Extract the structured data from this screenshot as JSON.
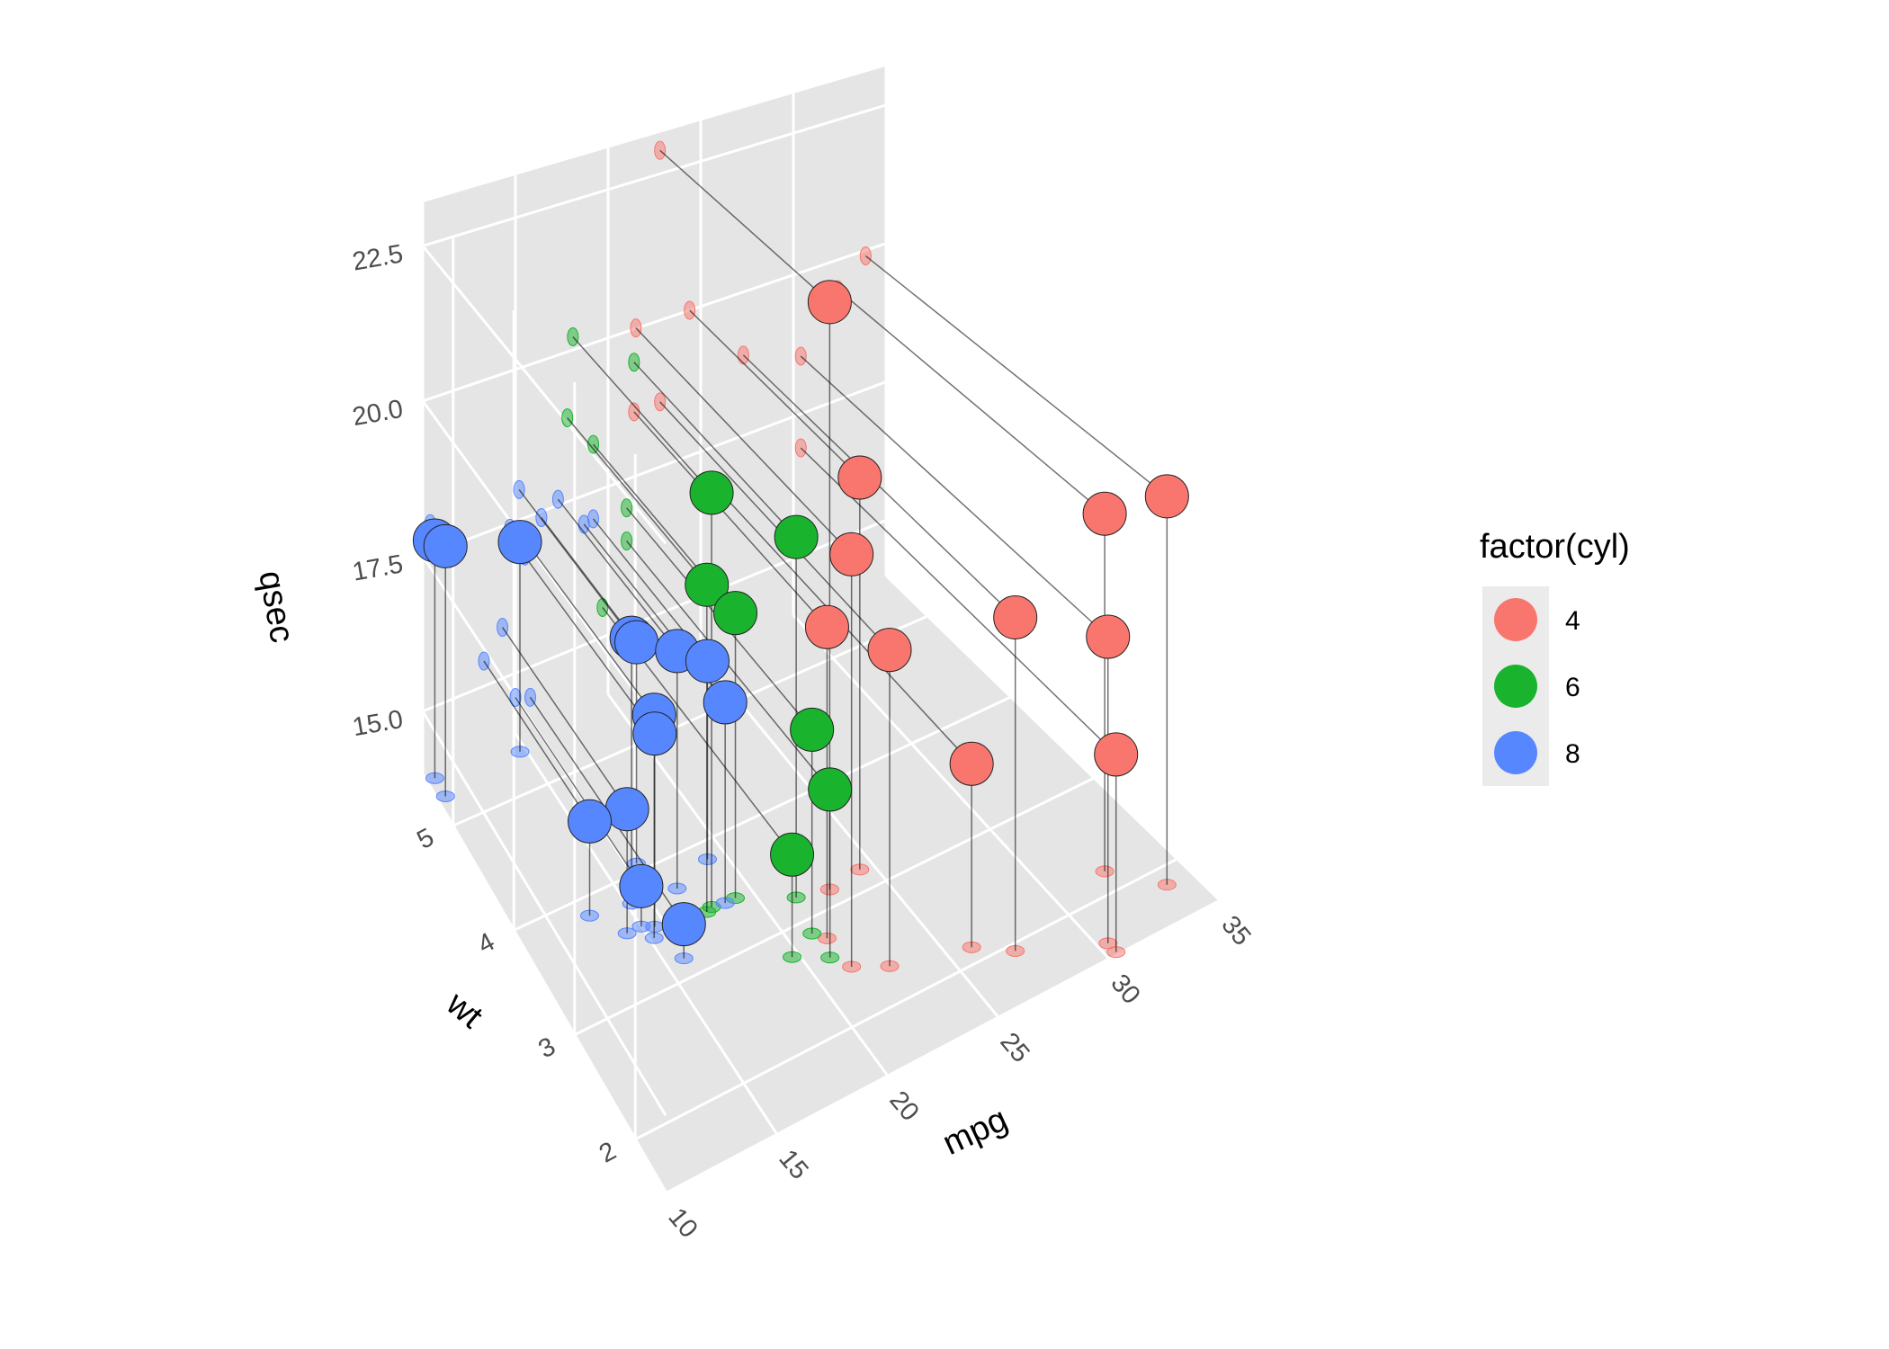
{
  "chart_data": {
    "type": "scatter",
    "variant": "3d-scatter-with-drop-lines-and-shadow-projections",
    "title": "",
    "axes": {
      "x": {
        "label": "mpg",
        "range": [
          10,
          35
        ],
        "ticks": [
          10,
          15,
          20,
          25,
          30,
          35
        ],
        "tick_labels": [
          "10",
          "15",
          "20",
          "25",
          "30",
          "35"
        ]
      },
      "y": {
        "label": "wt",
        "range": [
          1.5,
          5.5
        ],
        "ticks": [
          2,
          3,
          4,
          5
        ],
        "tick_labels": [
          "2",
          "3",
          "4",
          "5"
        ]
      },
      "z": {
        "label": "qsec",
        "range": [
          14,
          23.2
        ],
        "ticks": [
          15,
          17.5,
          20,
          22.5
        ],
        "tick_labels": [
          "15.0",
          "17.5",
          "20.0",
          "22.5"
        ]
      }
    },
    "grid": true,
    "panel_background": "#e5e5e5",
    "legend": {
      "title": "factor(cyl)",
      "position": "right",
      "entries": [
        {
          "label": "4",
          "color": "#f8766d"
        },
        {
          "label": "6",
          "color": "#19b32e"
        },
        {
          "label": "8",
          "color": "#5787ff"
        }
      ]
    },
    "series": [
      {
        "name": "4",
        "color": "#f8766d",
        "points": [
          [
            22.8,
            2.32,
            18.61
          ],
          [
            24.4,
            3.19,
            20.0
          ],
          [
            22.8,
            3.15,
            22.9
          ],
          [
            32.4,
            2.2,
            19.47
          ],
          [
            30.4,
            1.615,
            18.52
          ],
          [
            33.9,
            1.835,
            19.9
          ],
          [
            21.5,
            2.465,
            20.01
          ],
          [
            27.3,
            1.935,
            18.9
          ],
          [
            26.0,
            2.14,
            16.7
          ],
          [
            30.4,
            1.513,
            16.9
          ],
          [
            21.4,
            2.78,
            18.6
          ]
        ]
      },
      {
        "name": "6",
        "color": "#19b32e",
        "points": [
          [
            21.0,
            2.62,
            16.46
          ],
          [
            21.0,
            2.875,
            17.02
          ],
          [
            21.4,
            3.215,
            19.44
          ],
          [
            18.1,
            3.46,
            20.22
          ],
          [
            19.2,
            3.44,
            18.3
          ],
          [
            17.8,
            3.44,
            18.9
          ],
          [
            19.7,
            2.77,
            15.5
          ]
        ]
      },
      {
        "name": "8",
        "color": "#5787ff",
        "points": [
          [
            18.7,
            3.44,
            17.02
          ],
          [
            14.3,
            3.57,
            15.84
          ],
          [
            16.4,
            4.07,
            17.4
          ],
          [
            17.3,
            3.73,
            17.6
          ],
          [
            15.2,
            3.78,
            18.0
          ],
          [
            10.4,
            5.25,
            17.98
          ],
          [
            10.4,
            5.424,
            17.82
          ],
          [
            14.7,
            5.345,
            17.42
          ],
          [
            15.5,
            3.52,
            16.87
          ],
          [
            15.2,
            3.435,
            17.3
          ],
          [
            13.3,
            3.84,
            15.41
          ],
          [
            19.2,
            3.845,
            17.05
          ],
          [
            15.8,
            3.17,
            14.5
          ],
          [
            15.0,
            3.57,
            14.6
          ]
        ]
      }
    ]
  }
}
